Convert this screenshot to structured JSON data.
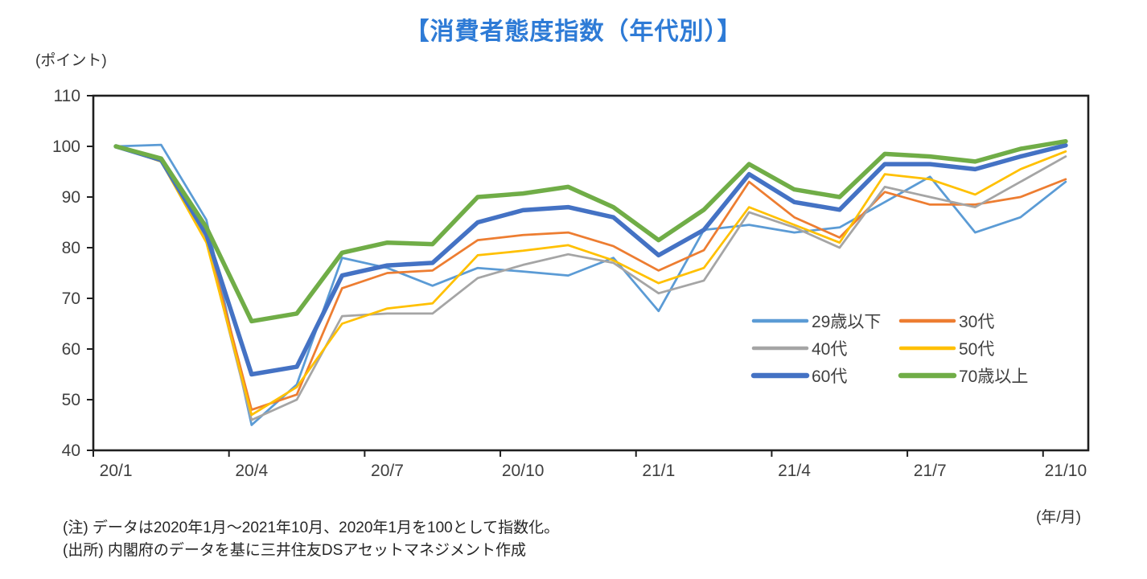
{
  "header": {
    "title": "【消費者態度指数（年代別）】",
    "title_color": "#2E7BD6"
  },
  "notes": {
    "line1": "(注) データは2020年1月～2021年10月、2020年1月を100として指数化。",
    "line2": "(出所) 内閣府のデータを基に三井住友DSアセットマネジメント作成"
  },
  "chart_data": {
    "type": "line",
    "title": "【消費者態度指数（年代別）】",
    "ylabel": "(ポイント)",
    "xlabel": "(年/月)",
    "ylim": [
      40,
      110
    ],
    "yticks": [
      40,
      50,
      60,
      70,
      80,
      90,
      100,
      110
    ],
    "grid": false,
    "axis_color": "#1f1f1f",
    "tick_label_color": "#3f3f3f",
    "legend_position": "inside-lower-right",
    "categories": [
      "20/1",
      "20/2",
      "20/3",
      "20/4",
      "20/5",
      "20/6",
      "20/7",
      "20/8",
      "20/9",
      "20/10",
      "20/11",
      "20/12",
      "21/1",
      "21/2",
      "21/3",
      "21/4",
      "21/5",
      "21/6",
      "21/7",
      "21/8",
      "21/9",
      "21/10"
    ],
    "x_tick_labels": [
      "20/1",
      "20/4",
      "20/7",
      "20/10",
      "21/1",
      "21/4",
      "21/7",
      "21/10"
    ],
    "series": [
      {
        "name": "29歳以下",
        "color": "#5B9BD5",
        "width": 2.75,
        "values": [
          100,
          100.3,
          85.5,
          45,
          53,
          78,
          76,
          72.5,
          76,
          75.3,
          74.5,
          78,
          67.5,
          83.5,
          84.5,
          83,
          84,
          89,
          94,
          83,
          86,
          93
        ]
      },
      {
        "name": "30代",
        "color": "#ED7D31",
        "width": 2.75,
        "values": [
          100,
          97.2,
          82,
          48,
          51,
          72,
          75,
          75.5,
          81.5,
          82.5,
          83,
          80.3,
          75.5,
          79.5,
          93,
          86,
          82,
          91,
          88.5,
          88.5,
          90,
          93.5
        ]
      },
      {
        "name": "40代",
        "color": "#A5A5A5",
        "width": 2.75,
        "values": [
          100,
          97,
          81.5,
          46,
          50,
          66.5,
          67,
          67,
          74,
          76.6,
          78.7,
          77,
          71,
          73.5,
          87,
          84,
          80,
          92,
          90,
          88,
          93,
          98
        ]
      },
      {
        "name": "50代",
        "color": "#FFC000",
        "width": 2.75,
        "values": [
          100,
          97,
          81,
          47,
          52.5,
          65,
          68,
          69,
          78.5,
          79.4,
          80.5,
          77.5,
          73,
          76,
          88,
          84.5,
          81,
          94.5,
          93.5,
          90.5,
          95.5,
          99
        ]
      },
      {
        "name": "60代",
        "color": "#4472C4",
        "width": 5.5,
        "values": [
          100,
          97.3,
          82.6,
          55,
          56.5,
          74.5,
          76.5,
          77,
          85,
          87.4,
          88,
          86,
          78.5,
          83.5,
          94.5,
          89,
          87.5,
          96.5,
          96.5,
          95.5,
          98,
          100.2
        ]
      },
      {
        "name": "70歳以上",
        "color": "#70AD47",
        "width": 5.5,
        "values": [
          100,
          97.6,
          84,
          65.5,
          67,
          79,
          81,
          80.7,
          90,
          90.7,
          92,
          88,
          81.5,
          87.5,
          96.5,
          91.5,
          90,
          98.5,
          98,
          97,
          99.5,
          101
        ]
      }
    ]
  }
}
